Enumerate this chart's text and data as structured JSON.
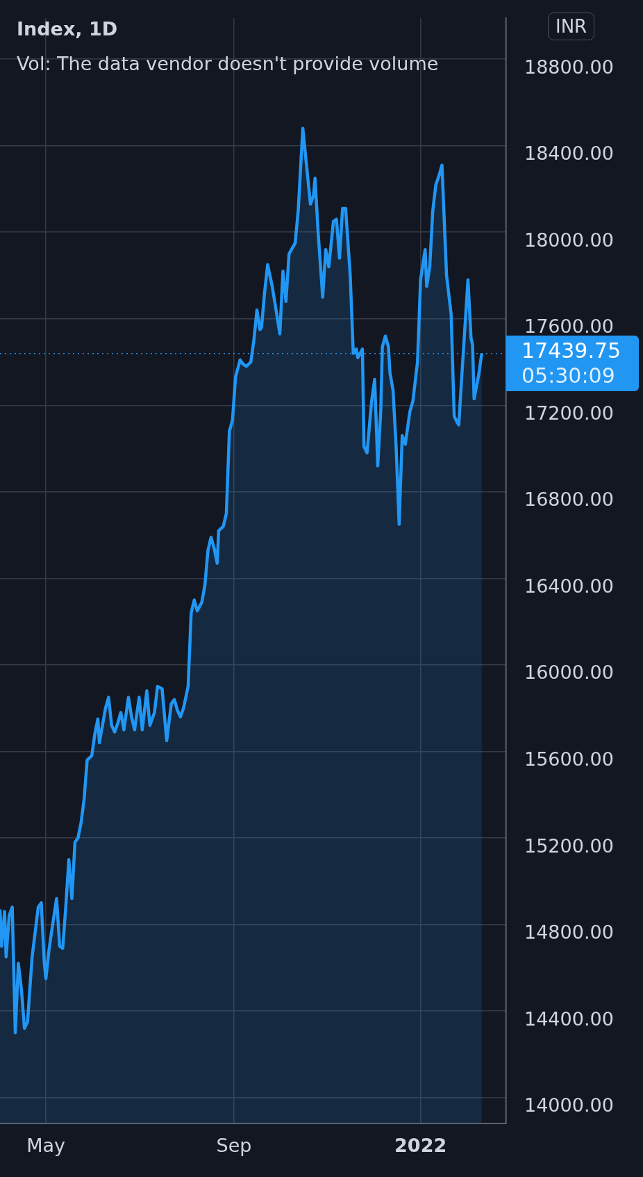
{
  "chart_data": {
    "type": "area",
    "title": "Index, 1D",
    "subtitle": "Vol: The data vendor doesn't provide volume",
    "ylabel": "INR",
    "x": [
      "2021-04-01",
      "2021-04-02",
      "2021-04-04",
      "2021-04-05",
      "2021-04-07",
      "2021-04-09",
      "2021-04-11",
      "2021-04-13",
      "2021-04-15",
      "2021-04-17",
      "2021-04-19",
      "2021-04-22",
      "2021-04-26",
      "2021-04-28",
      "2021-04-30",
      "2021-05-01",
      "2021-05-03",
      "2021-05-05",
      "2021-05-08",
      "2021-05-10",
      "2021-05-12",
      "2021-05-14",
      "2021-05-16",
      "2021-05-18",
      "2021-05-20",
      "2021-05-22",
      "2021-05-24",
      "2021-05-26",
      "2021-05-28",
      "2021-05-31",
      "2021-06-02",
      "2021-06-04",
      "2021-06-05",
      "2021-06-09",
      "2021-06-11",
      "2021-06-13",
      "2021-06-15",
      "2021-06-17",
      "2021-06-19",
      "2021-06-21",
      "2021-06-24",
      "2021-06-26",
      "2021-06-28",
      "2021-07-01",
      "2021-07-03",
      "2021-07-06",
      "2021-07-08",
      "2021-07-11",
      "2021-07-13",
      "2021-07-16",
      "2021-07-19",
      "2021-07-22",
      "2021-07-24",
      "2021-07-26",
      "2021-07-28",
      "2021-07-30",
      "2021-08-02",
      "2021-08-04",
      "2021-08-06",
      "2021-08-08",
      "2021-08-11",
      "2021-08-13",
      "2021-08-15",
      "2021-08-17",
      "2021-08-19",
      "2021-08-21",
      "2021-08-22",
      "2021-08-25",
      "2021-08-27",
      "2021-08-29",
      "2021-08-31",
      "2021-09-02",
      "2021-09-05",
      "2021-09-07",
      "2021-09-09",
      "2021-09-12",
      "2021-09-14",
      "2021-09-16",
      "2021-09-18",
      "2021-09-19",
      "2021-09-21",
      "2021-09-23",
      "2021-09-26",
      "2021-09-29",
      "2021-10-01",
      "2021-10-03",
      "2021-10-05",
      "2021-10-07",
      "2021-10-11",
      "2021-10-13",
      "2021-10-16",
      "2021-10-18",
      "2021-10-21",
      "2021-10-23",
      "2021-10-24",
      "2021-10-26",
      "2021-10-29",
      "2021-10-31",
      "2021-11-02",
      "2021-11-05",
      "2021-11-07",
      "2021-11-09",
      "2021-11-11",
      "2021-11-13",
      "2021-11-16",
      "2021-11-18",
      "2021-11-20",
      "2021-11-21",
      "2021-11-24",
      "2021-11-25",
      "2021-11-27",
      "2021-11-30",
      "2021-12-02",
      "2021-12-04",
      "2021-12-06",
      "2021-12-07",
      "2021-12-09",
      "2021-12-11",
      "2021-12-12",
      "2021-12-14",
      "2021-12-16",
      "2021-12-18",
      "2021-12-20",
      "2021-12-22",
      "2021-12-25",
      "2021-12-27",
      "2021-12-30",
      "2022-01-01",
      "2022-01-04",
      "2022-01-05",
      "2022-01-07",
      "2022-01-09",
      "2022-01-11",
      "2022-01-13",
      "2022-01-15",
      "2022-01-18",
      "2022-01-21",
      "2022-01-23",
      "2022-01-25",
      "2022-01-26",
      "2022-01-28",
      "2022-02-01",
      "2022-02-03",
      "2022-02-04",
      "2022-02-05",
      "2022-02-08",
      "2022-02-10"
    ],
    "series": [
      {
        "color": "#2196f3",
        "values": [
          14870,
          14700,
          14860,
          14650,
          14840,
          14880,
          14300,
          14620,
          14500,
          14320,
          14350,
          14650,
          14880,
          14900,
          14620,
          14550,
          14680,
          14780,
          14920,
          14700,
          14690,
          14880,
          15100,
          14920,
          15180,
          15200,
          15270,
          15380,
          15560,
          15580,
          15680,
          15750,
          15640,
          15800,
          15850,
          15720,
          15690,
          15730,
          15780,
          15700,
          15850,
          15760,
          15700,
          15850,
          15700,
          15880,
          15720,
          15780,
          15900,
          15890,
          15650,
          15820,
          15840,
          15790,
          15760,
          15800,
          15900,
          16240,
          16300,
          16250,
          16290,
          16370,
          16530,
          16590,
          16540,
          16470,
          16620,
          16640,
          16700,
          17080,
          17130,
          17330,
          17410,
          17390,
          17380,
          17400,
          17500,
          17640,
          17550,
          17560,
          17720,
          17850,
          17750,
          17620,
          17530,
          17820,
          17680,
          17900,
          17950,
          18100,
          18480,
          18340,
          18130,
          18170,
          18250,
          18000,
          17700,
          17920,
          17840,
          18050,
          18060,
          17880,
          18110,
          18110,
          17800,
          17440,
          17460,
          17420,
          17460,
          17010,
          16980,
          17220,
          17320,
          16920,
          17180,
          17470,
          17520,
          17470,
          17350,
          17270,
          17010,
          16650,
          17060,
          17020,
          17170,
          17220,
          17400,
          17780,
          17920,
          17750,
          17840,
          18100,
          18220,
          18260,
          18310,
          17800,
          17620,
          17150,
          17120,
          17110,
          17340,
          17780,
          17510,
          17480,
          17230,
          17340,
          17440
        ]
      }
    ],
    "xlim": [
      "2021-04-01",
      "2022-02-26"
    ],
    "xticks": [
      {
        "value": "2021-05-01",
        "label": "May"
      },
      {
        "value": "2021-09-01",
        "label": "Sep"
      },
      {
        "value": "2022-01-01",
        "label": "2022"
      }
    ],
    "ylim": [
      13880,
      18990
    ],
    "yticks": [
      {
        "value": 14000,
        "label": "14000.00"
      },
      {
        "value": 14400,
        "label": "14400.00"
      },
      {
        "value": 14800,
        "label": "14800.00"
      },
      {
        "value": 15200,
        "label": "15200.00"
      },
      {
        "value": 15600,
        "label": "15600.00"
      },
      {
        "value": 16000,
        "label": "16000.00"
      },
      {
        "value": 16400,
        "label": "16400.00"
      },
      {
        "value": 16800,
        "label": "16800.00"
      },
      {
        "value": 17200,
        "label": "17200.00"
      },
      {
        "value": 17600,
        "label": "17600.00"
      },
      {
        "value": 18000,
        "label": "18000.00"
      },
      {
        "value": 18400,
        "label": "18400.00"
      },
      {
        "value": 18800,
        "label": "18800.00"
      }
    ],
    "grid": true,
    "ref_lines": [
      {
        "axis": "y",
        "value": 17439.75,
        "label": "17439.75",
        "color": "#2196f3",
        "line_style": "dotted"
      }
    ],
    "annotations": [
      "05:30:09"
    ]
  }
}
